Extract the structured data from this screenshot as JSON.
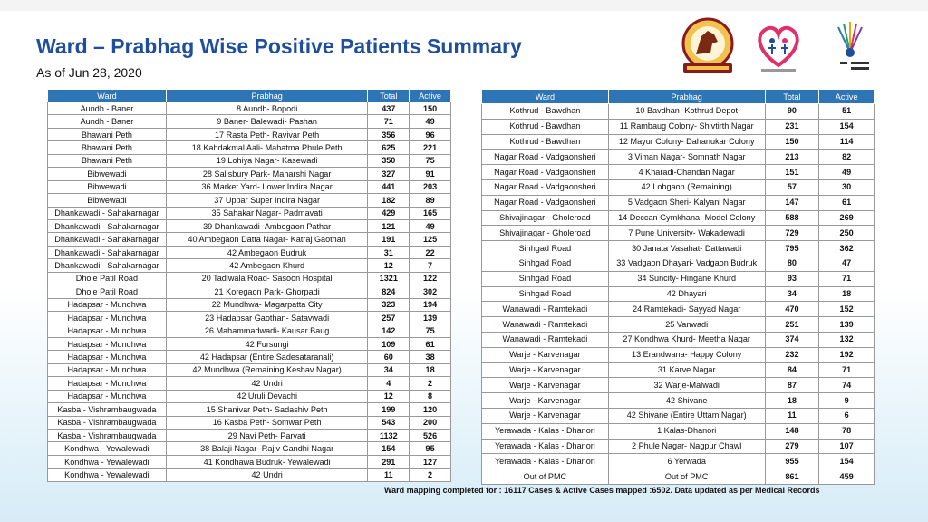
{
  "header": {
    "title": "Ward – Prabhag Wise Positive Patients Summary",
    "subtitle": "As of Jun 28, 2020"
  },
  "table": {
    "columns": [
      "Ward",
      "Prabhag",
      "Total",
      "Active"
    ]
  },
  "left_rows": [
    [
      "Aundh - Baner",
      "8 Aundh- Bopodi",
      "437",
      "150"
    ],
    [
      "Aundh - Baner",
      "9 Baner- Balewadi- Pashan",
      "71",
      "49"
    ],
    [
      "Bhawani Peth",
      "17 Rasta Peth- Ravivar Peth",
      "356",
      "96"
    ],
    [
      "Bhawani Peth",
      "18 Kahdakmal Aali- Mahatma Phule Peth",
      "625",
      "221"
    ],
    [
      "Bhawani Peth",
      "19 Lohiya Nagar- Kasewadi",
      "350",
      "75"
    ],
    [
      "Bibwewadi",
      "28 Salisbury Park- Maharshi Nagar",
      "327",
      "91"
    ],
    [
      "Bibwewadi",
      "36 Market Yard- Lower Indira Nagar",
      "441",
      "203"
    ],
    [
      "Bibwewadi",
      "37 Uppar Super Indira Nagar",
      "182",
      "89"
    ],
    [
      "Dhankawadi - Sahakarnagar",
      "35 Sahakar Nagar- Padmavati",
      "429",
      "165"
    ],
    [
      "Dhankawadi - Sahakarnagar",
      "39 Dhankawadi- Ambegaon Pathar",
      "121",
      "49"
    ],
    [
      "Dhankawadi - Sahakarnagar",
      "40 Ambegaon Datta Nagar- Katraj Gaothan",
      "191",
      "125"
    ],
    [
      "Dhankawadi - Sahakarnagar",
      "42 Ambegaon Budruk",
      "31",
      "22"
    ],
    [
      "Dhankawadi - Sahakarnagar",
      "42 Ambegaon Khurd",
      "12",
      "7"
    ],
    [
      "Dhole Patil Road",
      "20 Tadiwala Road- Sasoon Hospital",
      "1321",
      "122"
    ],
    [
      "Dhole Patil Road",
      "21 Koregaon Park- Ghorpadi",
      "824",
      "302"
    ],
    [
      "Hadapsar - Mundhwa",
      "22 Mundhwa- Magarpatta City",
      "323",
      "194"
    ],
    [
      "Hadapsar - Mundhwa",
      "23 Hadapsar Gaothan- Satavwadi",
      "257",
      "139"
    ],
    [
      "Hadapsar - Mundhwa",
      "26 Mahammadwadi- Kausar Baug",
      "142",
      "75"
    ],
    [
      "Hadapsar - Mundhwa",
      "42 Fursungi",
      "109",
      "61"
    ],
    [
      "Hadapsar - Mundhwa",
      "42 Hadapsar (Entire Sadesataranali)",
      "60",
      "38"
    ],
    [
      "Hadapsar - Mundhwa",
      "42 Mundhwa (Remaining Keshav Nagar)",
      "34",
      "18"
    ],
    [
      "Hadapsar - Mundhwa",
      "42 Undri",
      "4",
      "2"
    ],
    [
      "Hadapsar - Mundhwa",
      "42 Uruli Devachi",
      "12",
      "8"
    ],
    [
      "Kasba - Vishrambaugwada",
      "15 Shanivar Peth- Sadashiv Peth",
      "199",
      "120"
    ],
    [
      "Kasba - Vishrambaugwada",
      "16 Kasba Peth- Somwar Peth",
      "543",
      "200"
    ],
    [
      "Kasba - Vishrambaugwada",
      "29 Navi Peth- Parvati",
      "1132",
      "526"
    ],
    [
      "Kondhwa - Yewalewadi",
      "38 Balaji Nagar- Rajiv Gandhi Nagar",
      "154",
      "95"
    ],
    [
      "Kondhwa - Yewalewadi",
      "41 Kondhawa Budruk- Yewalewadi",
      "291",
      "127"
    ],
    [
      "Kondhwa - Yewalewadi",
      "42 Undri",
      "11",
      "2"
    ]
  ],
  "right_rows": [
    [
      "Kothrud - Bawdhan",
      "10 Bavdhan- Kothrud Depot",
      "90",
      "51"
    ],
    [
      "Kothrud - Bawdhan",
      "11 Rambaug Colony- Shivtirth Nagar",
      "231",
      "154"
    ],
    [
      "Kothrud - Bawdhan",
      "12 Mayur Colony- Dahanukar Colony",
      "150",
      "114"
    ],
    [
      "Nagar Road - Vadgaonsheri",
      "3 Viman Nagar- Somnath Nagar",
      "213",
      "82"
    ],
    [
      "Nagar Road - Vadgaonsheri",
      "4 Kharadi-Chandan Nagar",
      "151",
      "49"
    ],
    [
      "Nagar Road - Vadgaonsheri",
      "42 Lohgaon (Remaining)",
      "57",
      "30"
    ],
    [
      "Nagar Road - Vadgaonsheri",
      "5 Vadgaon Sheri- Kalyani Nagar",
      "147",
      "61"
    ],
    [
      "Shivajinagar - Gholeroad",
      "14 Deccan Gymkhana- Model Colony",
      "588",
      "269"
    ],
    [
      "Shivajinagar - Gholeroad",
      "7 Pune University- Wakadewadi",
      "729",
      "250"
    ],
    [
      "Sinhgad Road",
      "30 Janata Vasahat- Dattawadi",
      "795",
      "362"
    ],
    [
      "Sinhgad Road",
      "33 Vadgaon Dhayari- Vadgaon Budruk",
      "80",
      "47"
    ],
    [
      "Sinhgad Road",
      "34 Suncity- Hingane Khurd",
      "93",
      "71"
    ],
    [
      "Sinhgad Road",
      "42 Dhayari",
      "34",
      "18"
    ],
    [
      "Wanawadi - Ramtekadi",
      "24 Ramtekadi- Sayyad Nagar",
      "470",
      "152"
    ],
    [
      "Wanawadi - Ramtekadi",
      "25 Vanwadi",
      "251",
      "139"
    ],
    [
      "Wanawadi - Ramtekadi",
      "27 Kondhwa Khurd- Meetha Nagar",
      "374",
      "132"
    ],
    [
      "Warje - Karvenagar",
      "13 Erandwana- Happy Colony",
      "232",
      "192"
    ],
    [
      "Warje - Karvenagar",
      "31 Karve Nagar",
      "84",
      "71"
    ],
    [
      "Warje - Karvenagar",
      "32 Warje-Malwadi",
      "87",
      "74"
    ],
    [
      "Warje - Karvenagar",
      "42 Shivane",
      "18",
      "9"
    ],
    [
      "Warje - Karvenagar",
      "42 Shivane (Entire Uttam Nagar)",
      "11",
      "6"
    ],
    [
      "Yerawada - Kalas - Dhanori",
      "1 Kalas-Dhanori",
      "148",
      "78"
    ],
    [
      "Yerawada - Kalas - Dhanori",
      "2 Phule Nagar- Nagpur Chawl",
      "279",
      "107"
    ],
    [
      "Yerawada - Kalas - Dhanori",
      "6 Yerwada",
      "955",
      "154"
    ],
    [
      "Out of PMC",
      "Out of PMC",
      "861",
      "459"
    ]
  ],
  "footer": {
    "note": "Ward mapping completed for : 16117 Cases & Active Cases mapped :6502. Data updated as per Medical Records"
  },
  "logos": [
    "pune-municipal-corporation-logo",
    "health-heart-logo",
    "pune-smart-city-logo"
  ],
  "colors": {
    "title": "#1f4e9d",
    "header_bg": "#2e75b6"
  }
}
